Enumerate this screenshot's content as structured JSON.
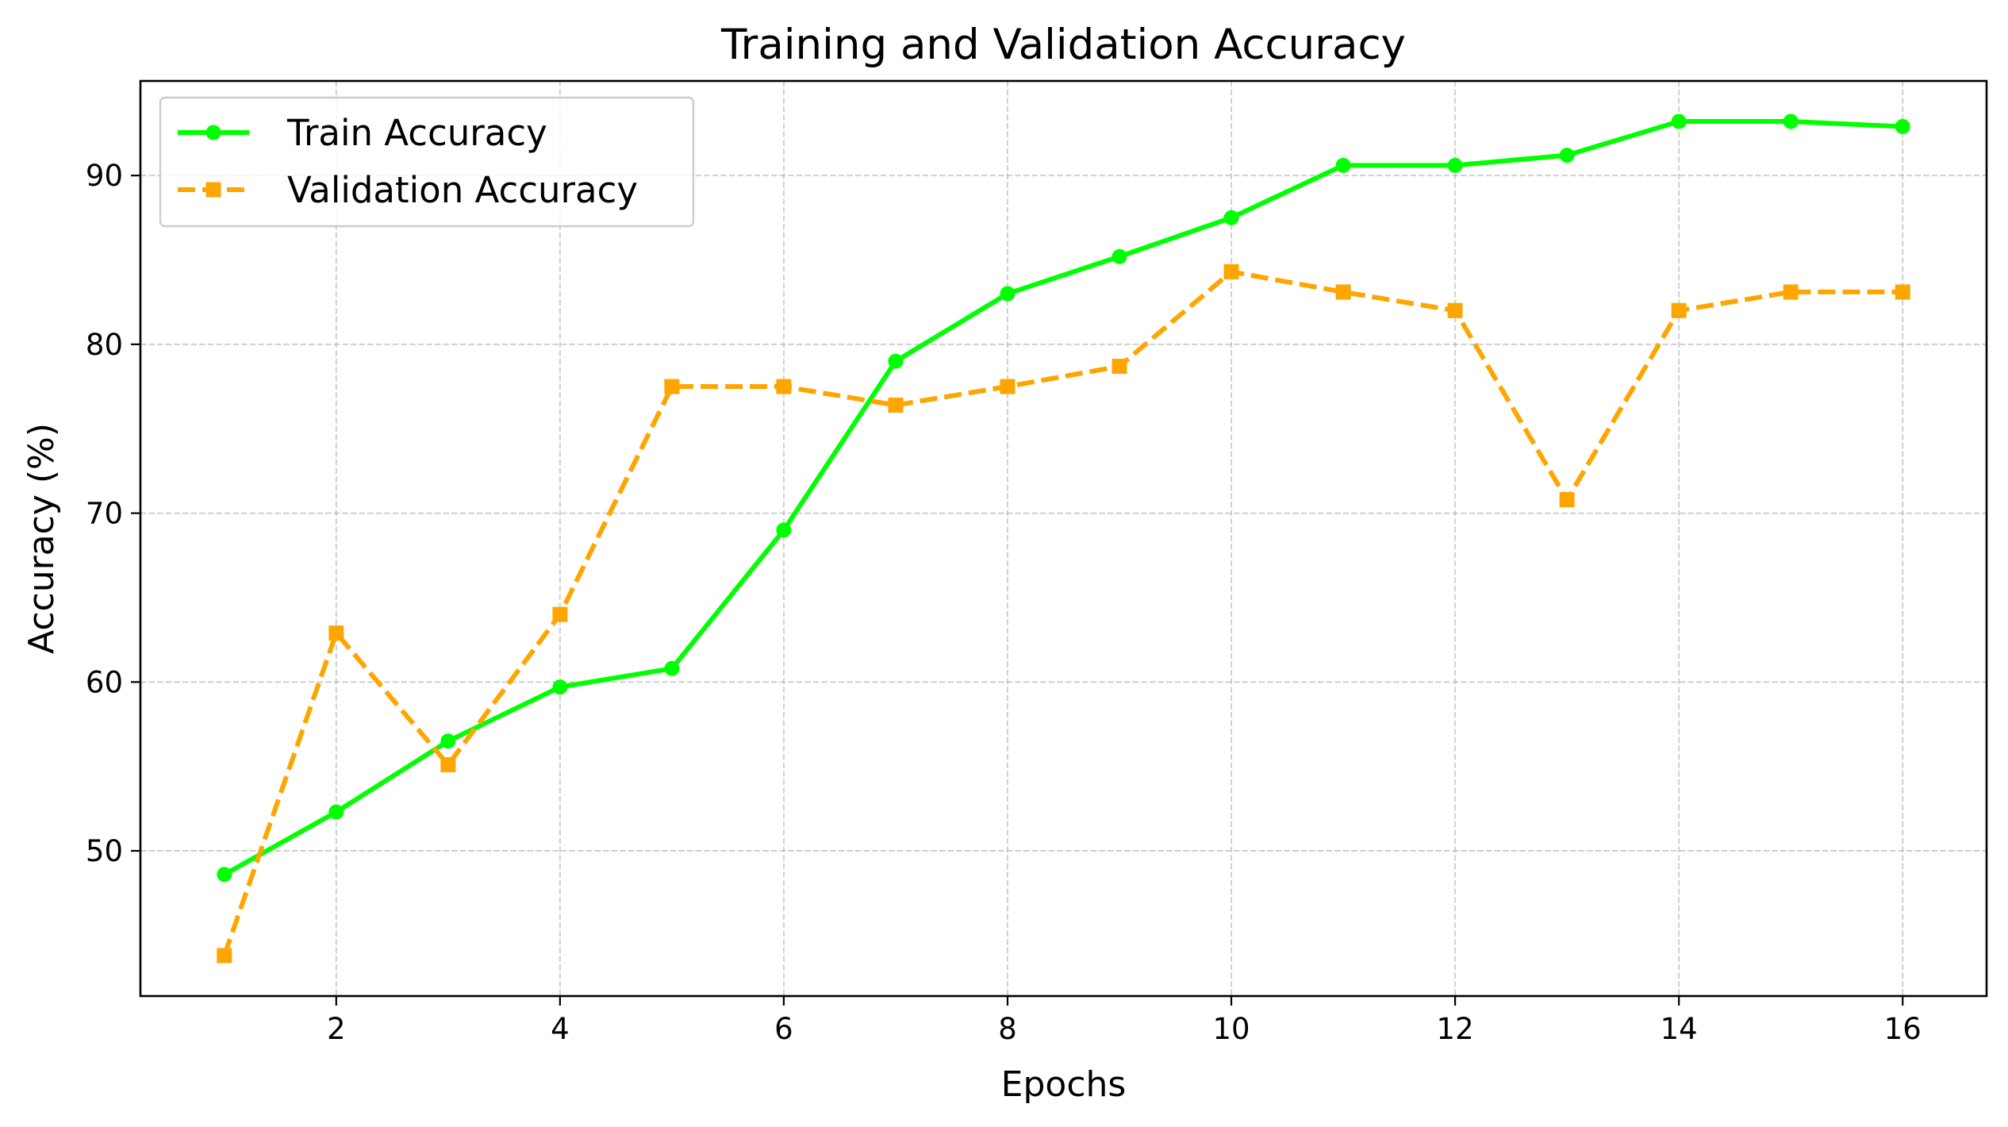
{
  "chart_data": {
    "type": "line",
    "title": "Training and Validation Accuracy",
    "xlabel": "Epochs",
    "ylabel": "Accuracy (%)",
    "x": [
      1,
      2,
      3,
      4,
      5,
      6,
      7,
      8,
      9,
      10,
      11,
      12,
      13,
      14,
      15,
      16
    ],
    "xlim": [
      0.25,
      16.75
    ],
    "ylim": [
      41.4,
      95.6
    ],
    "xticks": [
      2,
      4,
      6,
      8,
      10,
      12,
      14,
      16
    ],
    "yticks": [
      50,
      60,
      70,
      80,
      90
    ],
    "grid": true,
    "legend_position": "top-left",
    "series": [
      {
        "name": "Train Accuracy",
        "color": "#00ff00",
        "line_style": "solid",
        "marker": "circle",
        "values": [
          48.6,
          52.3,
          56.5,
          59.7,
          60.8,
          69.0,
          79.0,
          83.0,
          85.2,
          87.5,
          90.6,
          90.6,
          91.2,
          93.2,
          93.2,
          92.9
        ]
      },
      {
        "name": "Validation Accuracy",
        "color": "#ffa500",
        "line_style": "dashed",
        "marker": "square",
        "values": [
          43.8,
          62.9,
          55.1,
          64.0,
          77.5,
          77.5,
          76.4,
          77.5,
          78.7,
          84.3,
          83.1,
          82.0,
          70.8,
          82.0,
          83.1,
          83.1
        ]
      }
    ]
  }
}
